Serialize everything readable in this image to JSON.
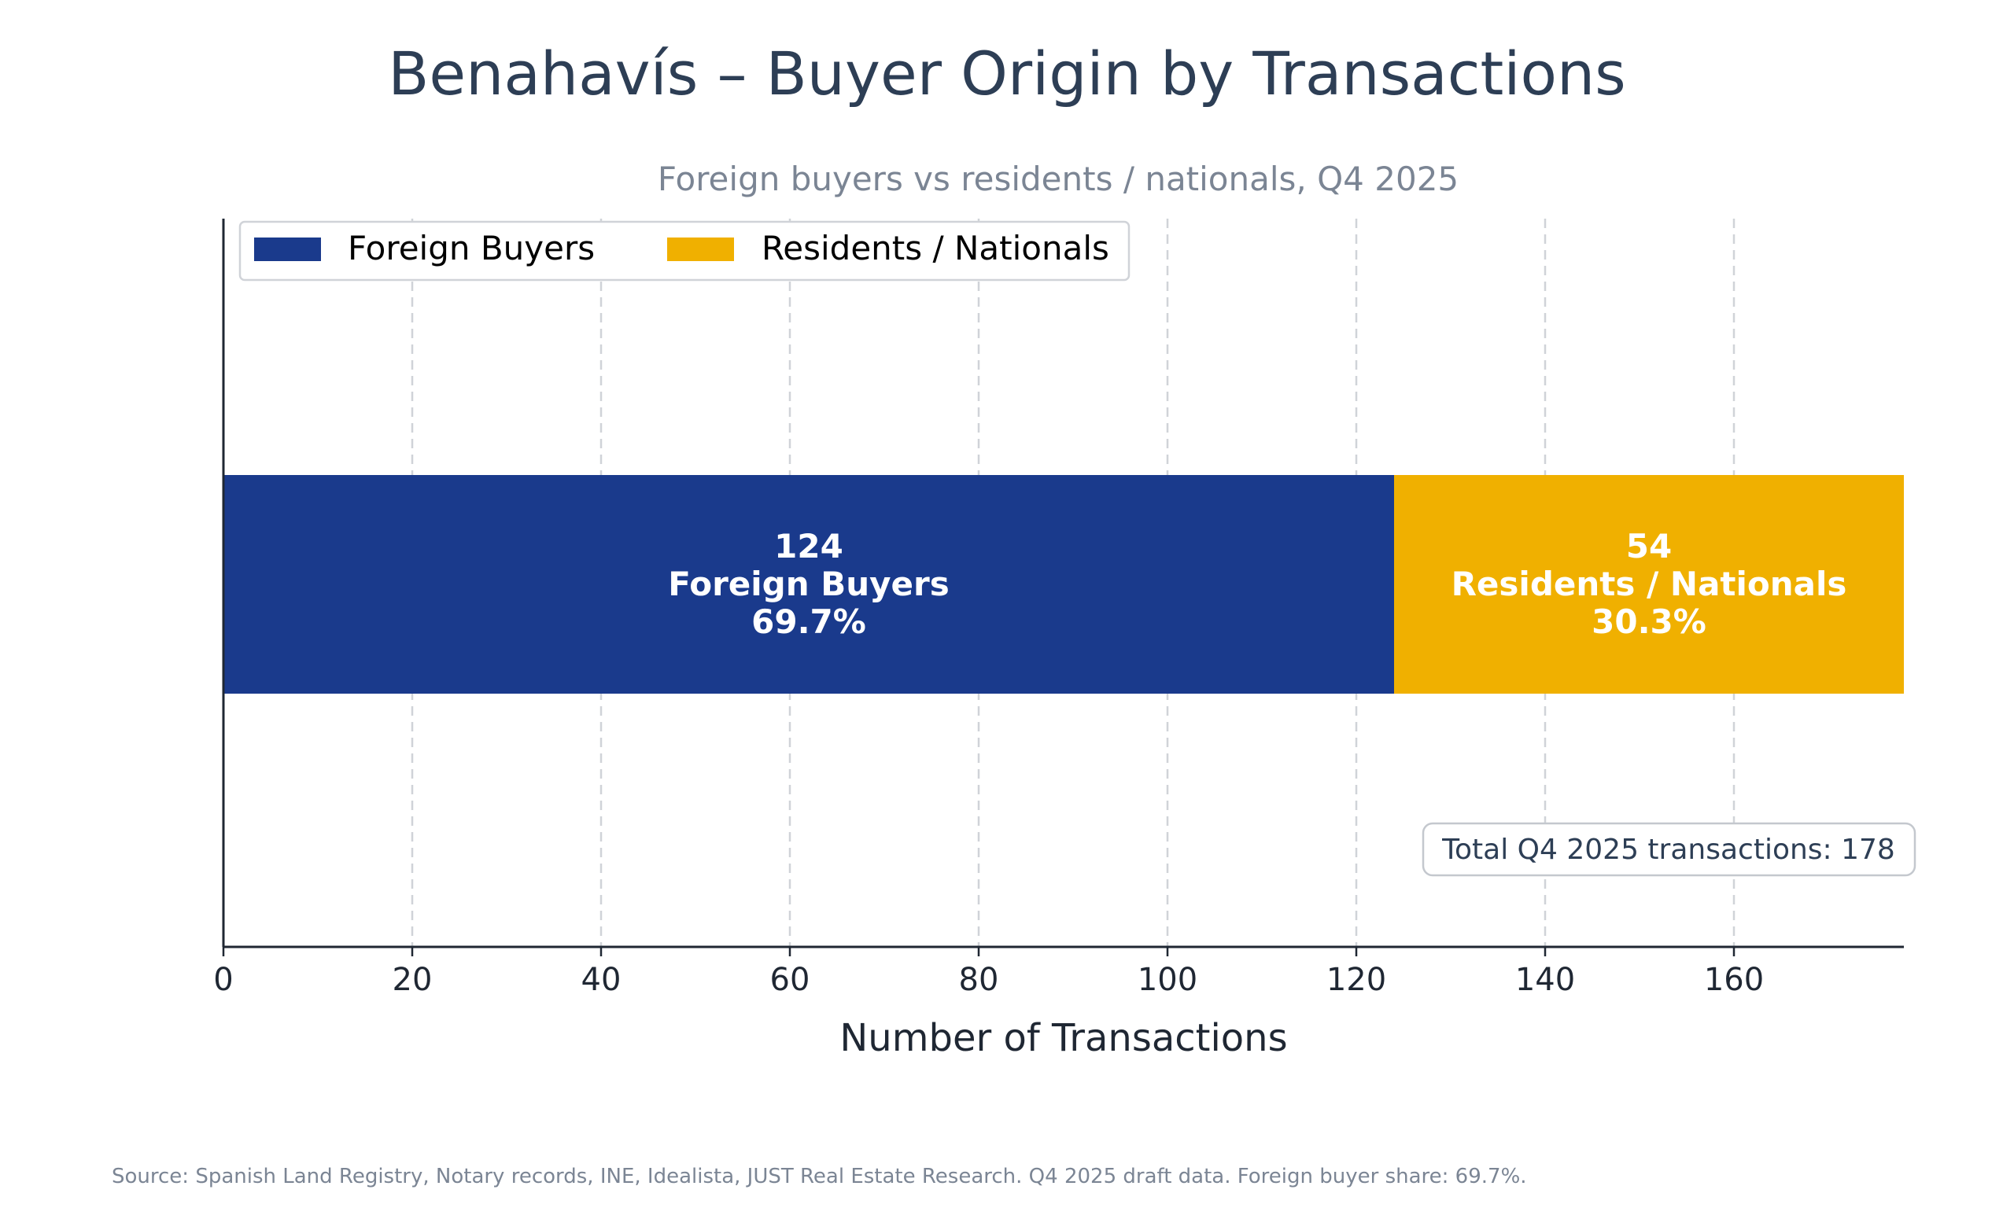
{
  "chart_data": {
    "type": "bar",
    "orientation": "horizontal",
    "stacked": true,
    "title": "Benahavís – Buyer Origin by Transactions",
    "subtitle": "Foreign buyers vs residents / nationals, Q4 2025",
    "xlabel": "Number of Transactions",
    "ylabel": "",
    "xlim": [
      0,
      178
    ],
    "xticks": [
      0,
      20,
      40,
      60,
      80,
      100,
      120,
      140,
      160
    ],
    "grid": true,
    "legend_position": "top-left",
    "series": [
      {
        "name": "Foreign Buyers",
        "value": 124,
        "share": "69.7%",
        "label_lines": [
          "124",
          "Foreign Buyers",
          "69.7%"
        ],
        "color": "#1a3a8c"
      },
      {
        "name": "Residents / Nationals",
        "value": 54,
        "share": "30.3%",
        "label_lines": [
          "54",
          "Residents / Nationals",
          "30.3%"
        ],
        "color": "#f0b000"
      }
    ],
    "annotation": "Total Q4 2025 transactions: 178",
    "source": "Source: Spanish Land Registry, Notary records, INE, Idealista, JUST Real Estate Research. Q4 2025 draft data. Foreign buyer share: 69.7%."
  },
  "colors": {
    "title": "#2d3e55",
    "subtitle": "#7b8594",
    "axis": "#1f2733",
    "grid": "#d0d3d8",
    "annotation_border": "#c4c8ce",
    "source": "#7b8594",
    "label_text": "#ffffff"
  }
}
